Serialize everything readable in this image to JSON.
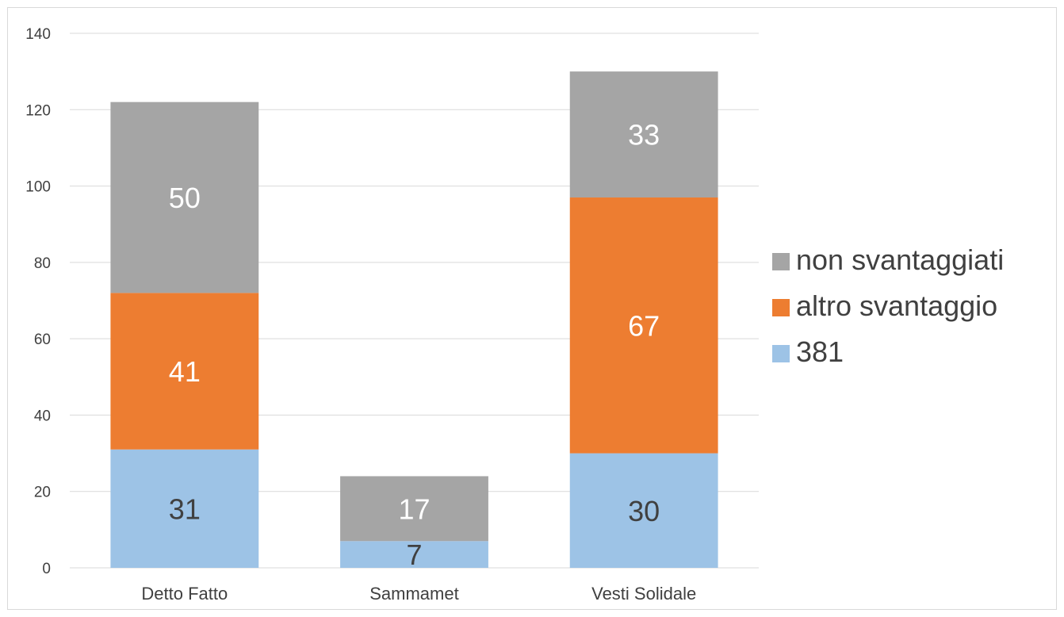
{
  "chart_data": {
    "type": "bar",
    "stacked": true,
    "categories": [
      "Detto Fatto",
      "Sammamet",
      "Vesti Solidale"
    ],
    "series": [
      {
        "name": "381",
        "values": [
          31,
          7,
          30
        ],
        "color": "#9dc3e6",
        "label_color": "#404040"
      },
      {
        "name": "altro svantaggio",
        "values": [
          41,
          0,
          67
        ],
        "color": "#ed7d31",
        "label_color": "#ffffff"
      },
      {
        "name": "non svantaggiati",
        "values": [
          50,
          17,
          33
        ],
        "color": "#a5a5a5",
        "label_color": "#ffffff"
      }
    ],
    "yticks": [
      "0",
      "20",
      "40",
      "60",
      "80",
      "100",
      "120",
      "140"
    ],
    "ylim": [
      0,
      140
    ],
    "grid": true,
    "legend_position": "right",
    "legend_order": [
      "non svantaggiati",
      "altro svantaggio",
      "381"
    ],
    "title": "",
    "xlabel": "",
    "ylabel": ""
  }
}
